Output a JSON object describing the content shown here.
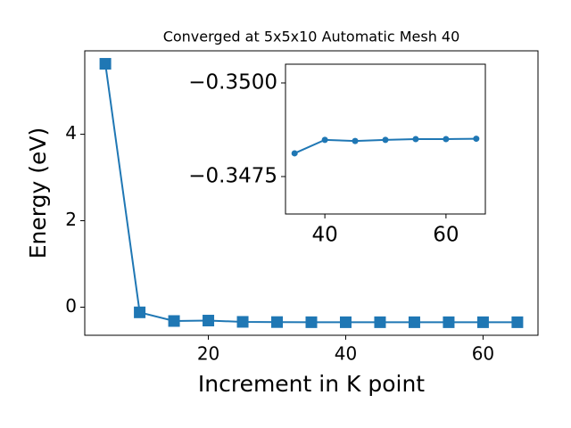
{
  "chart_data": [
    {
      "type": "line",
      "title": "Converged at 5x5x10 Automatic Mesh 40",
      "x_label": "Increment in K point",
      "y_label": "Energy (eV)",
      "x": [
        5,
        10,
        15,
        20,
        25,
        30,
        35,
        40,
        45,
        50,
        55,
        60,
        65
      ],
      "values": [
        5.63,
        -0.12,
        -0.32,
        -0.31,
        -0.34,
        -0.345,
        -0.3481,
        -0.3485,
        -0.34845,
        -0.3485,
        -0.3485,
        -0.3485,
        -0.3485
      ],
      "color": "#1f77b4",
      "marker": "square",
      "xlim": [
        2,
        68
      ],
      "ylim": [
        -0.65,
        5.93
      ],
      "xticks": [
        20,
        40,
        60
      ],
      "yticks": [
        0,
        2,
        4
      ]
    },
    {
      "type": "line",
      "x": [
        35,
        40,
        45,
        50,
        55,
        60,
        65
      ],
      "values": [
        -0.34812,
        -0.34848,
        -0.34845,
        -0.34848,
        -0.3485,
        -0.3485,
        -0.34851
      ],
      "color": "#1f77b4",
      "marker": "circle",
      "xlim": [
        33.5,
        66.5
      ],
      "ylim": [
        -0.3465,
        -0.3505
      ],
      "xticks": [
        40,
        60
      ],
      "yticks": [
        {
          "value": -0.35,
          "label": "−0.3500"
        },
        {
          "value": -0.3475,
          "label": "−0.3475"
        }
      ]
    }
  ]
}
